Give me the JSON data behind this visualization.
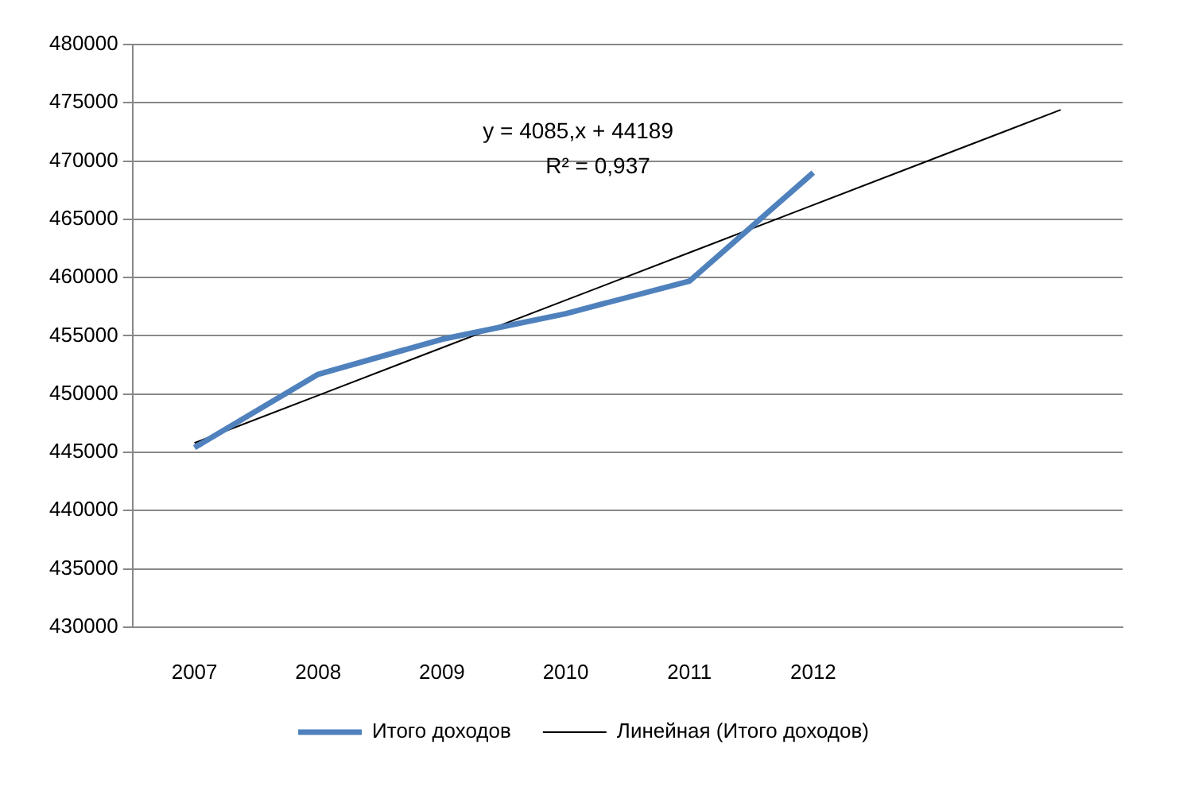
{
  "chart_data": {
    "type": "line",
    "categories": [
      "2007",
      "2008",
      "2009",
      "2010",
      "2011",
      "2012",
      null,
      null
    ],
    "series": [
      {
        "name": "Итого доходов",
        "color": "#4f81bd",
        "values": [
          445400,
          451700,
          454700,
          456900,
          459700,
          469000,
          null,
          null
        ]
      },
      {
        "name": "Линейная (Итого доходов)",
        "color": "#000000",
        "values": [
          445800,
          449885,
          453970,
          458055,
          462140,
          466225,
          470310,
          474395
        ]
      }
    ],
    "ylim": [
      430000,
      480000
    ],
    "yticks": [
      430000,
      435000,
      440000,
      445000,
      450000,
      455000,
      460000,
      465000,
      470000,
      475000,
      480000
    ],
    "grid": "y",
    "legend": "bottom",
    "marker": "none",
    "line_style": "solid",
    "annotations": [
      "y = 4085,x + 44189",
      "R² = 0,937"
    ]
  }
}
